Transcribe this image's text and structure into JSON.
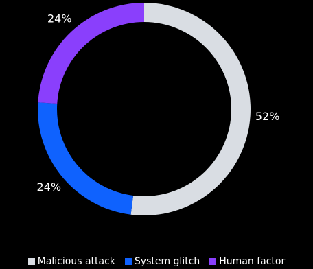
{
  "chart_data": {
    "type": "pie",
    "style": "donut",
    "categories": [
      "Malicious attack",
      "System glitch",
      "Human factor"
    ],
    "values": [
      52,
      24,
      24
    ],
    "labels": [
      "52%",
      "24%",
      "24%"
    ],
    "colors": [
      "#d9dde3",
      "#0f62fe",
      "#8a3ffc"
    ],
    "legend": "bottom-center"
  },
  "legend": {
    "items": [
      {
        "label": "Malicious attack",
        "color": "#d9dde3"
      },
      {
        "label": "System glitch",
        "color": "#0f62fe"
      },
      {
        "label": "Human factor",
        "color": "#8a3ffc"
      }
    ]
  }
}
